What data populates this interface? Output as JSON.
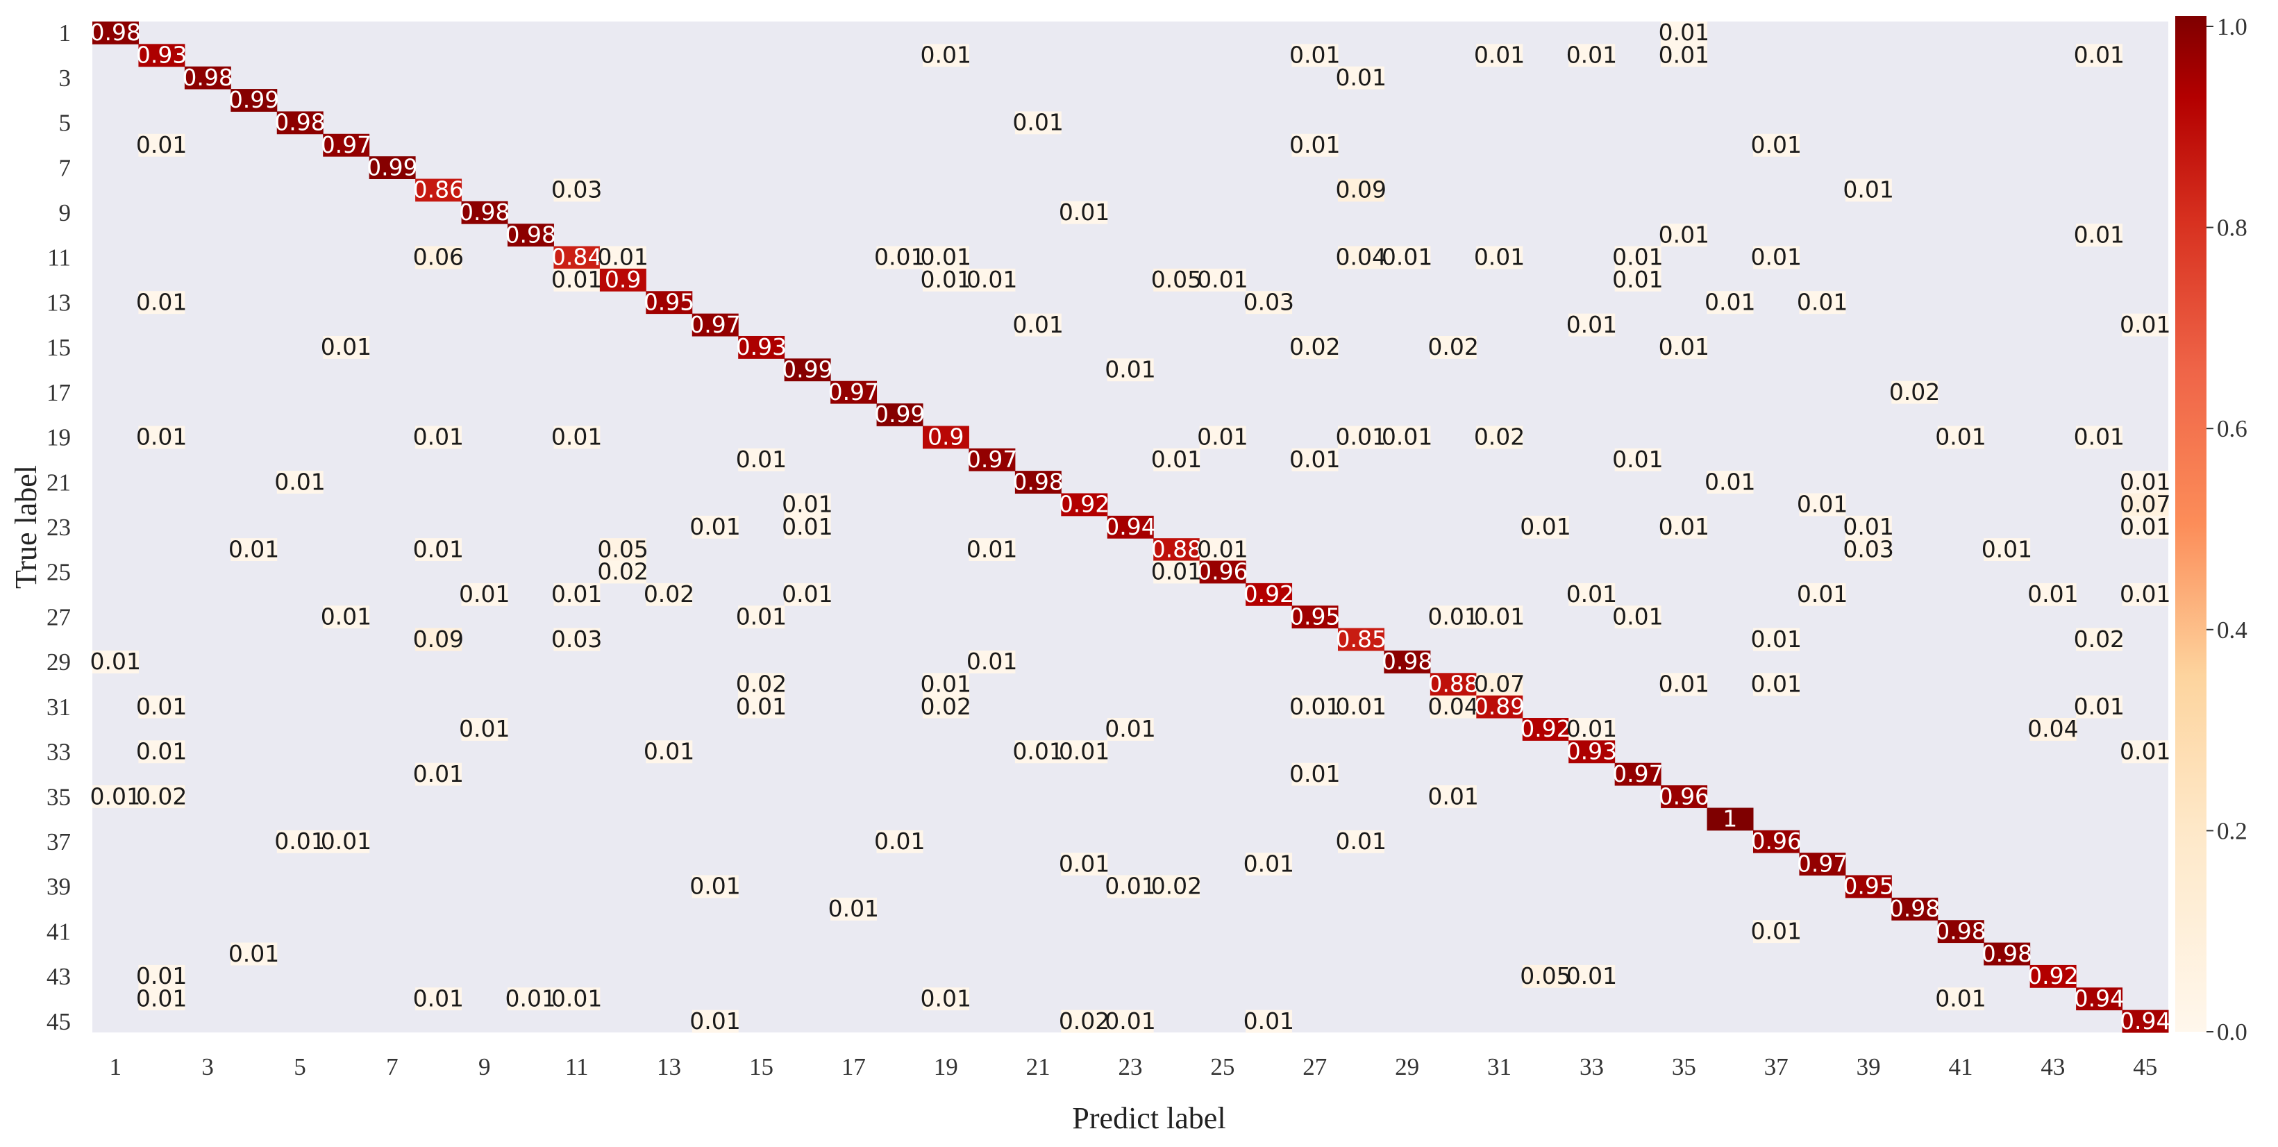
{
  "chart_data": {
    "type": "heatmap",
    "n": 45,
    "xlabel": "Predict label",
    "ylabel": "True label",
    "x_tick_labels": [
      "1",
      "3",
      "5",
      "7",
      "9",
      "11",
      "13",
      "15",
      "17",
      "19",
      "21",
      "23",
      "25",
      "27",
      "29",
      "31",
      "33",
      "35",
      "37",
      "39",
      "41",
      "43",
      "45"
    ],
    "y_tick_labels": [
      "1",
      "3",
      "5",
      "7",
      "9",
      "11",
      "13",
      "15",
      "17",
      "19",
      "21",
      "23",
      "25",
      "27",
      "29",
      "31",
      "33",
      "35",
      "37",
      "39",
      "41",
      "43",
      "45"
    ],
    "colorbar": {
      "range": [
        0.0,
        1.0
      ],
      "ticks": [
        "0.0",
        "0.2",
        "0.4",
        "0.6",
        "0.8",
        "1.0"
      ]
    },
    "colormap": "OrRd",
    "background": "#eaeaf2",
    "cells": [
      [
        1,
        1,
        "0.98"
      ],
      [
        1,
        35,
        "0.01"
      ],
      [
        2,
        2,
        "0.93"
      ],
      [
        2,
        19,
        "0.01"
      ],
      [
        2,
        27,
        "0.01"
      ],
      [
        2,
        31,
        "0.01"
      ],
      [
        2,
        33,
        "0.01"
      ],
      [
        2,
        35,
        "0.01"
      ],
      [
        2,
        44,
        "0.01"
      ],
      [
        3,
        3,
        "0.98"
      ],
      [
        3,
        28,
        "0.01"
      ],
      [
        4,
        4,
        "0.99"
      ],
      [
        5,
        5,
        "0.98"
      ],
      [
        5,
        21,
        "0.01"
      ],
      [
        6,
        2,
        "0.01"
      ],
      [
        6,
        6,
        "0.97"
      ],
      [
        6,
        27,
        "0.01"
      ],
      [
        6,
        37,
        "0.01"
      ],
      [
        7,
        7,
        "0.99"
      ],
      [
        8,
        8,
        "0.86"
      ],
      [
        8,
        11,
        "0.03"
      ],
      [
        8,
        28,
        "0.09"
      ],
      [
        8,
        39,
        "0.01"
      ],
      [
        9,
        9,
        "0.98"
      ],
      [
        9,
        22,
        "0.01"
      ],
      [
        10,
        10,
        "0.98"
      ],
      [
        10,
        35,
        "0.01"
      ],
      [
        10,
        44,
        "0.01"
      ],
      [
        11,
        8,
        "0.06"
      ],
      [
        11,
        11,
        "0.84"
      ],
      [
        11,
        12,
        "0.01"
      ],
      [
        11,
        18,
        "0.01"
      ],
      [
        11,
        19,
        "0.01"
      ],
      [
        11,
        28,
        "0.04"
      ],
      [
        11,
        29,
        "0.01"
      ],
      [
        11,
        31,
        "0.01"
      ],
      [
        11,
        34,
        "0.01"
      ],
      [
        11,
        37,
        "0.01"
      ],
      [
        12,
        11,
        "0.01"
      ],
      [
        12,
        12,
        "0.9"
      ],
      [
        12,
        19,
        "0.01"
      ],
      [
        12,
        20,
        "0.01"
      ],
      [
        12,
        24,
        "0.05"
      ],
      [
        12,
        25,
        "0.01"
      ],
      [
        12,
        34,
        "0.01"
      ],
      [
        13,
        2,
        "0.01"
      ],
      [
        13,
        13,
        "0.95"
      ],
      [
        13,
        26,
        "0.03"
      ],
      [
        13,
        36,
        "0.01"
      ],
      [
        13,
        38,
        "0.01"
      ],
      [
        14,
        14,
        "0.97"
      ],
      [
        14,
        21,
        "0.01"
      ],
      [
        14,
        33,
        "0.01"
      ],
      [
        14,
        45,
        "0.01"
      ],
      [
        15,
        6,
        "0.01"
      ],
      [
        15,
        15,
        "0.93"
      ],
      [
        15,
        27,
        "0.02"
      ],
      [
        15,
        30,
        "0.02"
      ],
      [
        15,
        35,
        "0.01"
      ],
      [
        16,
        16,
        "0.99"
      ],
      [
        16,
        23,
        "0.01"
      ],
      [
        17,
        17,
        "0.97"
      ],
      [
        17,
        40,
        "0.02"
      ],
      [
        18,
        18,
        "0.99"
      ],
      [
        19,
        2,
        "0.01"
      ],
      [
        19,
        8,
        "0.01"
      ],
      [
        19,
        11,
        "0.01"
      ],
      [
        19,
        19,
        "0.9"
      ],
      [
        19,
        25,
        "0.01"
      ],
      [
        19,
        28,
        "0.01"
      ],
      [
        19,
        29,
        "0.01"
      ],
      [
        19,
        31,
        "0.02"
      ],
      [
        19,
        41,
        "0.01"
      ],
      [
        19,
        44,
        "0.01"
      ],
      [
        20,
        15,
        "0.01"
      ],
      [
        20,
        20,
        "0.97"
      ],
      [
        20,
        24,
        "0.01"
      ],
      [
        20,
        27,
        "0.01"
      ],
      [
        20,
        34,
        "0.01"
      ],
      [
        21,
        5,
        "0.01"
      ],
      [
        21,
        21,
        "0.98"
      ],
      [
        21,
        36,
        "0.01"
      ],
      [
        21,
        45,
        "0.01"
      ],
      [
        22,
        16,
        "0.01"
      ],
      [
        22,
        22,
        "0.92"
      ],
      [
        22,
        38,
        "0.01"
      ],
      [
        22,
        45,
        "0.07"
      ],
      [
        23,
        14,
        "0.01"
      ],
      [
        23,
        16,
        "0.01"
      ],
      [
        23,
        23,
        "0.94"
      ],
      [
        23,
        32,
        "0.01"
      ],
      [
        23,
        35,
        "0.01"
      ],
      [
        23,
        39,
        "0.01"
      ],
      [
        23,
        45,
        "0.01"
      ],
      [
        24,
        4,
        "0.01"
      ],
      [
        24,
        8,
        "0.01"
      ],
      [
        24,
        12,
        "0.05"
      ],
      [
        24,
        20,
        "0.01"
      ],
      [
        24,
        24,
        "0.88"
      ],
      [
        24,
        25,
        "0.01"
      ],
      [
        24,
        39,
        "0.03"
      ],
      [
        24,
        42,
        "0.01"
      ],
      [
        25,
        12,
        "0.02"
      ],
      [
        25,
        24,
        "0.01"
      ],
      [
        25,
        25,
        "0.96"
      ],
      [
        26,
        9,
        "0.01"
      ],
      [
        26,
        11,
        "0.01"
      ],
      [
        26,
        13,
        "0.02"
      ],
      [
        26,
        16,
        "0.01"
      ],
      [
        26,
        26,
        "0.92"
      ],
      [
        26,
        33,
        "0.01"
      ],
      [
        26,
        38,
        "0.01"
      ],
      [
        26,
        43,
        "0.01"
      ],
      [
        26,
        45,
        "0.01"
      ],
      [
        27,
        6,
        "0.01"
      ],
      [
        27,
        15,
        "0.01"
      ],
      [
        27,
        27,
        "0.95"
      ],
      [
        27,
        30,
        "0.01"
      ],
      [
        27,
        31,
        "0.01"
      ],
      [
        27,
        34,
        "0.01"
      ],
      [
        28,
        8,
        "0.09"
      ],
      [
        28,
        11,
        "0.03"
      ],
      [
        28,
        28,
        "0.85"
      ],
      [
        28,
        37,
        "0.01"
      ],
      [
        28,
        44,
        "0.02"
      ],
      [
        29,
        1,
        "0.01"
      ],
      [
        29,
        20,
        "0.01"
      ],
      [
        29,
        29,
        "0.98"
      ],
      [
        30,
        15,
        "0.02"
      ],
      [
        30,
        19,
        "0.01"
      ],
      [
        30,
        30,
        "0.88"
      ],
      [
        30,
        31,
        "0.07"
      ],
      [
        30,
        35,
        "0.01"
      ],
      [
        30,
        37,
        "0.01"
      ],
      [
        31,
        2,
        "0.01"
      ],
      [
        31,
        15,
        "0.01"
      ],
      [
        31,
        19,
        "0.02"
      ],
      [
        31,
        27,
        "0.01"
      ],
      [
        31,
        28,
        "0.01"
      ],
      [
        31,
        30,
        "0.04"
      ],
      [
        31,
        31,
        "0.89"
      ],
      [
        31,
        44,
        "0.01"
      ],
      [
        32,
        9,
        "0.01"
      ],
      [
        32,
        23,
        "0.01"
      ],
      [
        32,
        32,
        "0.92"
      ],
      [
        32,
        33,
        "0.01"
      ],
      [
        32,
        43,
        "0.04"
      ],
      [
        33,
        2,
        "0.01"
      ],
      [
        33,
        13,
        "0.01"
      ],
      [
        33,
        21,
        "0.01"
      ],
      [
        33,
        22,
        "0.01"
      ],
      [
        33,
        33,
        "0.93"
      ],
      [
        33,
        45,
        "0.01"
      ],
      [
        34,
        8,
        "0.01"
      ],
      [
        34,
        27,
        "0.01"
      ],
      [
        34,
        34,
        "0.97"
      ],
      [
        35,
        1,
        "0.01"
      ],
      [
        35,
        2,
        "0.02"
      ],
      [
        35,
        30,
        "0.01"
      ],
      [
        35,
        35,
        "0.96"
      ],
      [
        36,
        36,
        "1"
      ],
      [
        37,
        5,
        "0.01"
      ],
      [
        37,
        6,
        "0.01"
      ],
      [
        37,
        18,
        "0.01"
      ],
      [
        37,
        28,
        "0.01"
      ],
      [
        37,
        37,
        "0.96"
      ],
      [
        38,
        22,
        "0.01"
      ],
      [
        38,
        26,
        "0.01"
      ],
      [
        38,
        38,
        "0.97"
      ],
      [
        39,
        14,
        "0.01"
      ],
      [
        39,
        23,
        "0.01"
      ],
      [
        39,
        24,
        "0.02"
      ],
      [
        39,
        39,
        "0.95"
      ],
      [
        40,
        17,
        "0.01"
      ],
      [
        40,
        40,
        "0.98"
      ],
      [
        41,
        37,
        "0.01"
      ],
      [
        41,
        41,
        "0.98"
      ],
      [
        42,
        4,
        "0.01"
      ],
      [
        42,
        42,
        "0.98"
      ],
      [
        43,
        2,
        "0.01"
      ],
      [
        43,
        32,
        "0.05"
      ],
      [
        43,
        33,
        "0.01"
      ],
      [
        43,
        43,
        "0.92"
      ],
      [
        44,
        2,
        "0.01"
      ],
      [
        44,
        8,
        "0.01"
      ],
      [
        44,
        10,
        "0.01"
      ],
      [
        44,
        11,
        "0.01"
      ],
      [
        44,
        19,
        "0.01"
      ],
      [
        44,
        41,
        "0.01"
      ],
      [
        44,
        44,
        "0.94"
      ],
      [
        45,
        14,
        "0.01"
      ],
      [
        45,
        22,
        "0.02"
      ],
      [
        45,
        23,
        "0.01"
      ],
      [
        45,
        26,
        "0.01"
      ],
      [
        45,
        45,
        "0.94"
      ]
    ]
  }
}
